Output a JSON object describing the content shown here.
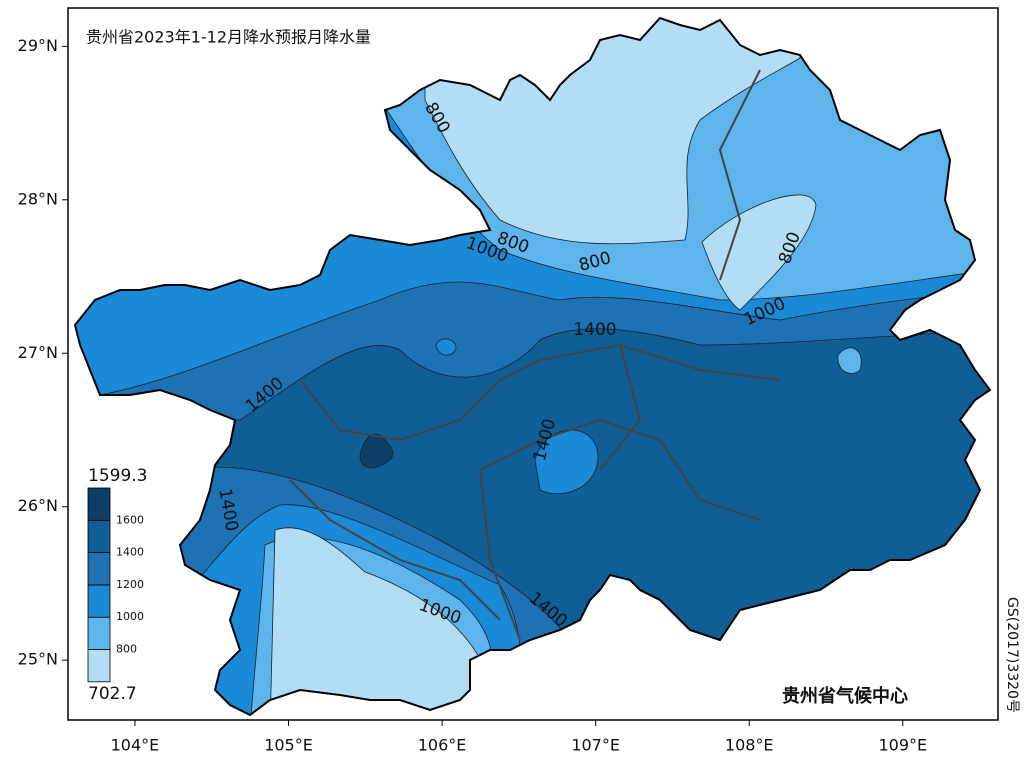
{
  "title": "贵州省2023年1-12月降水预报月降水量",
  "xlim": [
    103.564,
    109.62
  ],
  "ylim": [
    24.61,
    29.25
  ],
  "xticks": [
    {
      "value": 104,
      "label": "104°E"
    },
    {
      "value": 105,
      "label": "105°E"
    },
    {
      "value": 106,
      "label": "106°E"
    },
    {
      "value": 107,
      "label": "107°E"
    },
    {
      "value": 108,
      "label": "108°E"
    },
    {
      "value": 109,
      "label": "109°E"
    }
  ],
  "yticks": [
    {
      "value": 25,
      "label": "25°N"
    },
    {
      "value": 26,
      "label": "26°N"
    },
    {
      "value": 27,
      "label": "27°N"
    },
    {
      "value": 28,
      "label": "28°N"
    },
    {
      "value": 29,
      "label": "29°N"
    }
  ],
  "legend": {
    "max_label": "1599.3",
    "min_label": "702.7",
    "levels": [
      800,
      1000,
      1200,
      1400,
      1600
    ],
    "colors": [
      "#b3dcf5",
      "#5db5ec",
      "#1a8ad6",
      "#1e72b4",
      "#0f5e96",
      "#0b3f66"
    ]
  },
  "contour_labels": [
    "800",
    "800",
    "800",
    "800",
    "1000",
    "1000",
    "1000",
    "1400",
    "1400",
    "1400",
    "1400",
    "1400"
  ],
  "credit": "贵州省气候中心",
  "map_number": "GS(2017)3320号"
}
